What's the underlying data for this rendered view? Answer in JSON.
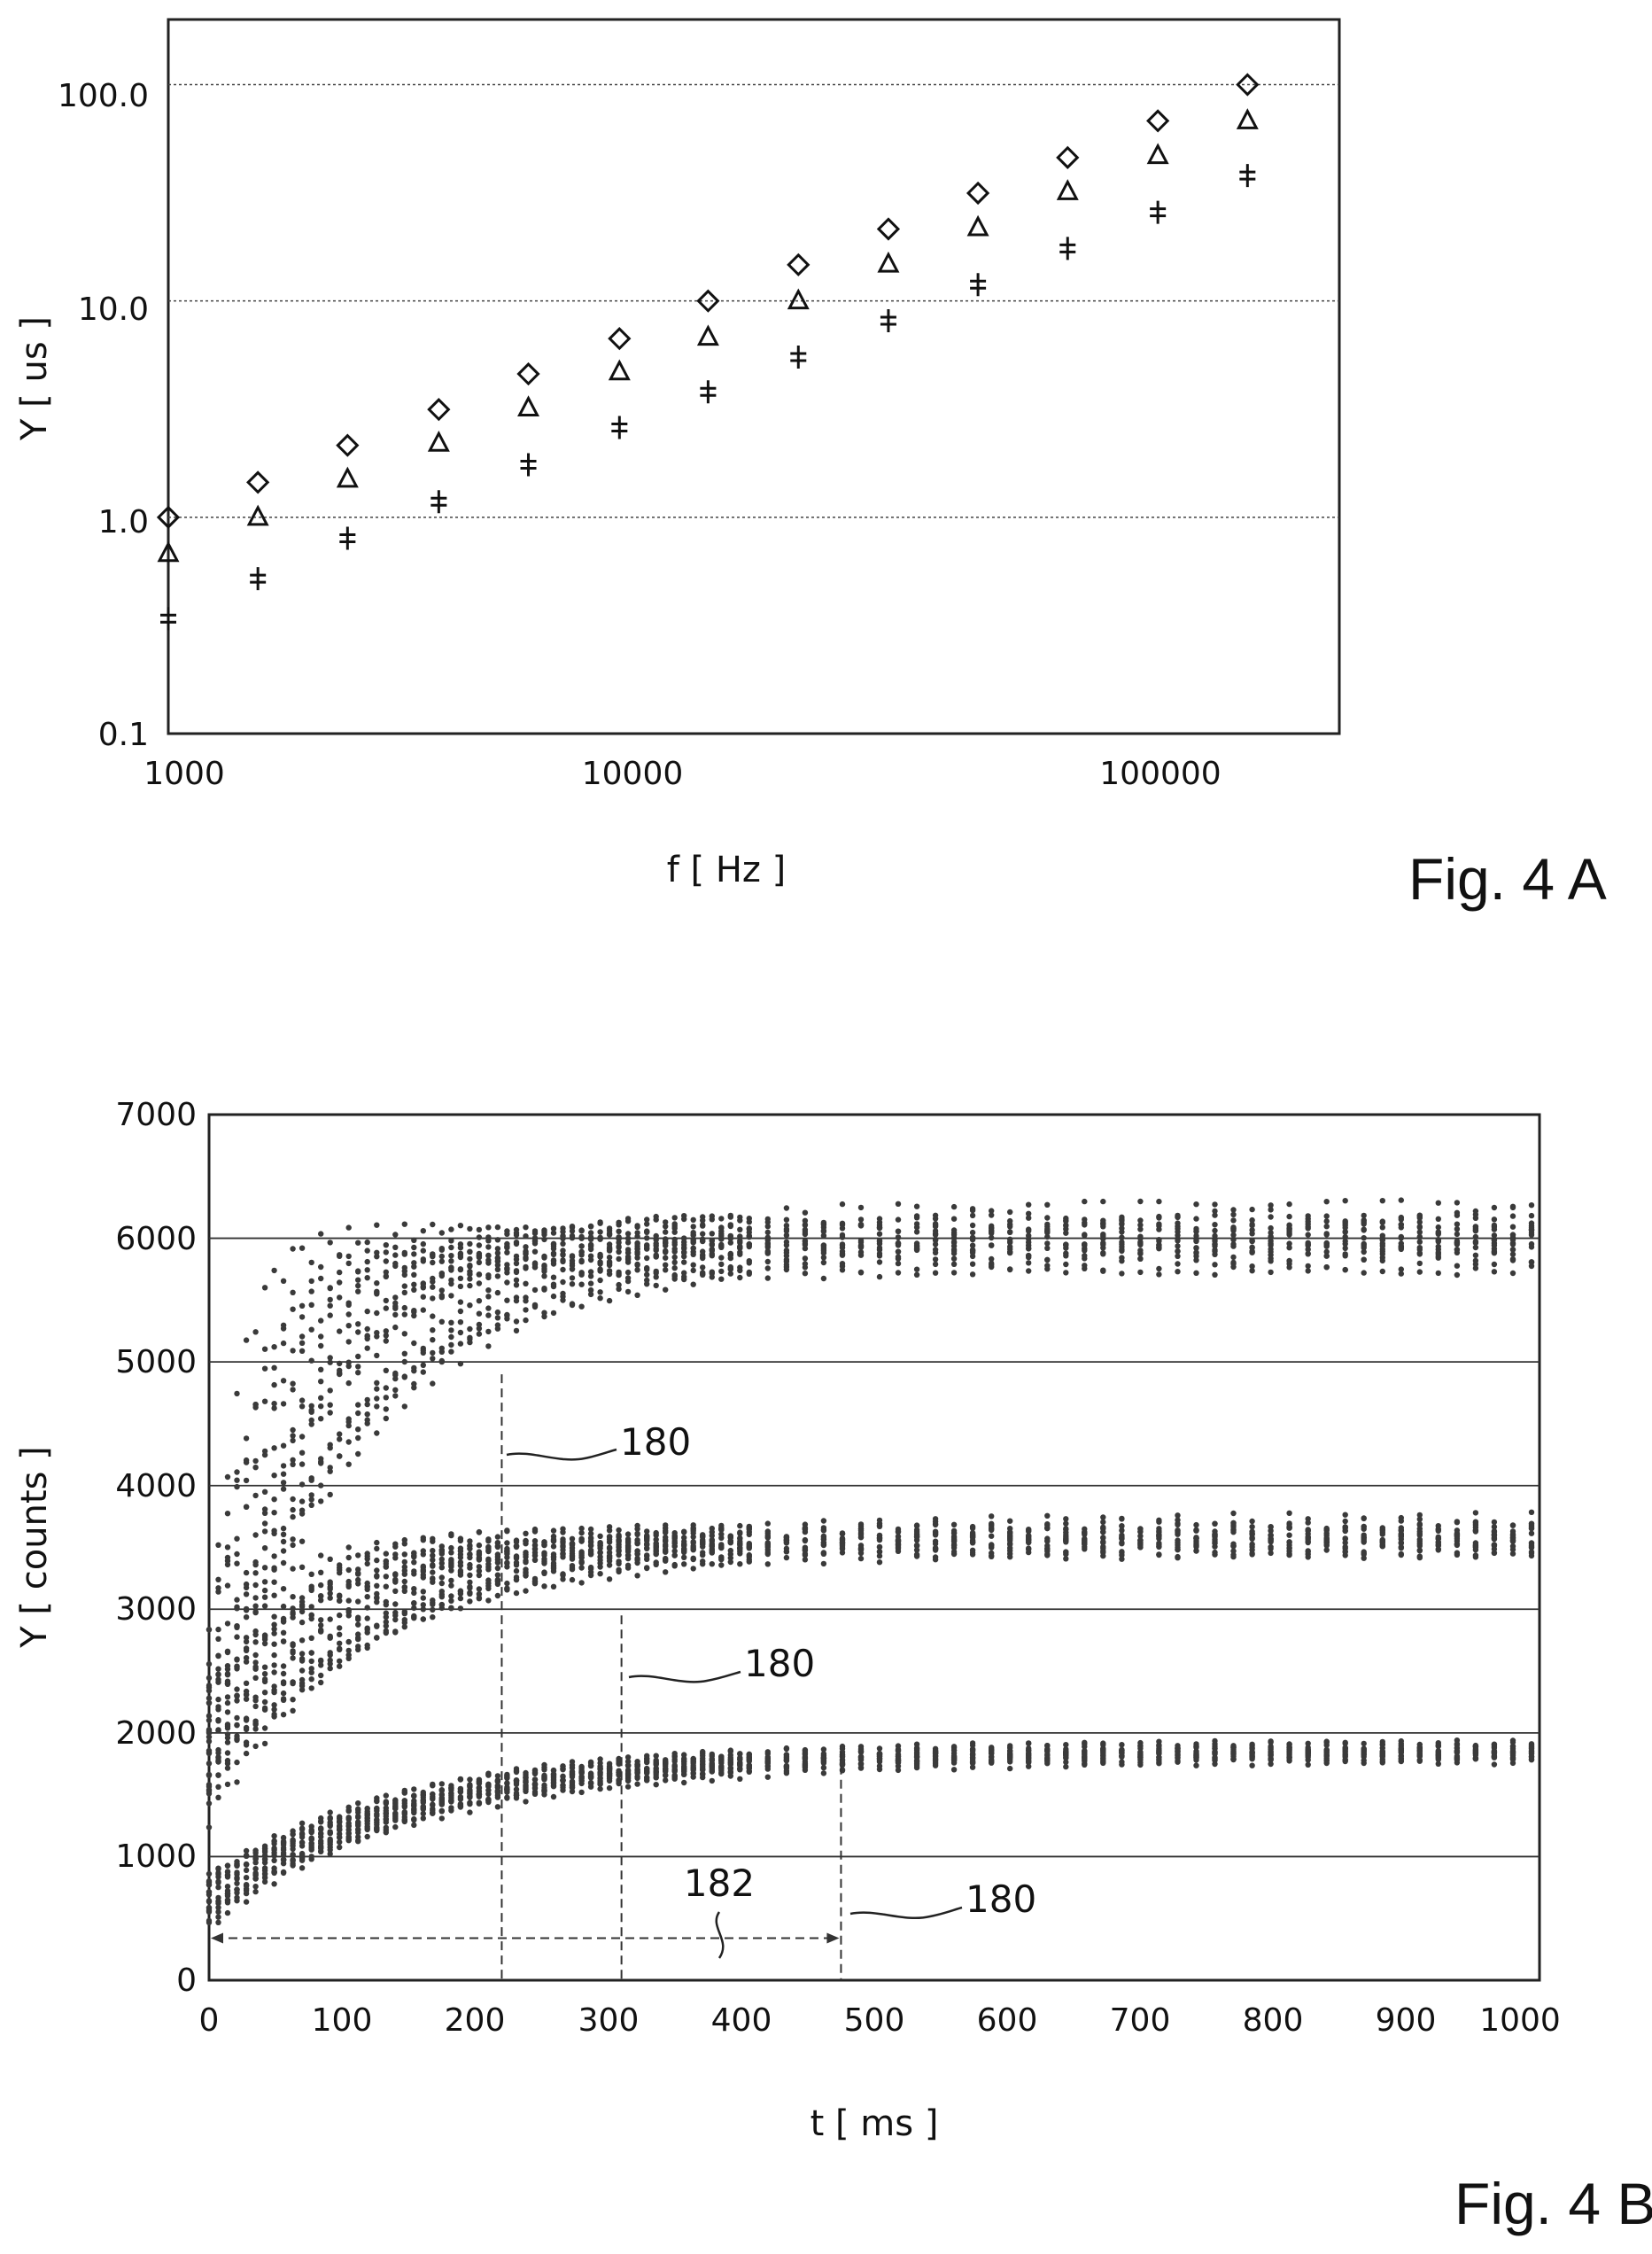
{
  "chart_data": [
    {
      "figure_label": "Fig. 4 A",
      "type": "scatter",
      "xscale": "log",
      "yscale": "log",
      "xlabel": "f [ Hz ]",
      "ylabel": "Y [ us ]",
      "xlim": [
        1000,
        200000
      ],
      "ylim": [
        0.1,
        200
      ],
      "xticks": [
        "1000",
        "10000",
        "100000"
      ],
      "yticks": [
        "0.1",
        "1.0",
        "10.0",
        "100.0"
      ],
      "grid": "horizontal",
      "x": [
        1000,
        1500,
        2250,
        3400,
        5100,
        7700,
        11500,
        17300,
        26000,
        39000,
        58500,
        88000,
        132000
      ],
      "series": [
        {
          "marker": "diamond",
          "values": [
            1.0,
            1.45,
            2.15,
            3.15,
            4.6,
            6.7,
            10.0,
            14.7,
            21.5,
            31.5,
            46,
            68,
            100
          ]
        },
        {
          "marker": "triangle",
          "values": [
            0.68,
            1.0,
            1.5,
            2.2,
            3.2,
            4.7,
            6.8,
            10.0,
            14.8,
            21.8,
            32,
            47,
            68
          ]
        },
        {
          "marker": "cross",
          "values": [
            0.34,
            0.52,
            0.8,
            1.18,
            1.75,
            2.6,
            3.8,
            5.5,
            8.1,
            11.9,
            17.5,
            25.7,
            38
          ]
        }
      ]
    },
    {
      "figure_label": "Fig. 4 B",
      "type": "scatter",
      "xlabel": "t [ ms ]",
      "ylabel": "Y [ counts ]",
      "xlim": [
        0,
        1000
      ],
      "ylim": [
        0,
        7000
      ],
      "xticks": [
        "0",
        "100",
        "200",
        "300",
        "400",
        "500",
        "600",
        "700",
        "800",
        "900",
        "1000"
      ],
      "yticks": [
        "0",
        "1000",
        "2000",
        "3000",
        "4000",
        "5000",
        "6000",
        "7000"
      ],
      "grid": "horizontal",
      "bands": [
        {
          "level": 6000,
          "start": 2500,
          "tau_min": 20,
          "tau_max": 130
        },
        {
          "level": 3600,
          "start": 2000,
          "tau_min": 40,
          "tau_max": 150
        },
        {
          "level": 1850,
          "start": 700,
          "tau_min": 130,
          "tau_max": 180
        }
      ],
      "markers_x": [
        220,
        310,
        475
      ],
      "annotations": [
        {
          "text": "180",
          "x": 225,
          "y": 4300
        },
        {
          "text": "180",
          "x": 315,
          "y": 2500
        },
        {
          "text": "180",
          "x": 480,
          "y": 650
        },
        {
          "text": "182",
          "x": 385,
          "y": 800
        }
      ]
    }
  ]
}
